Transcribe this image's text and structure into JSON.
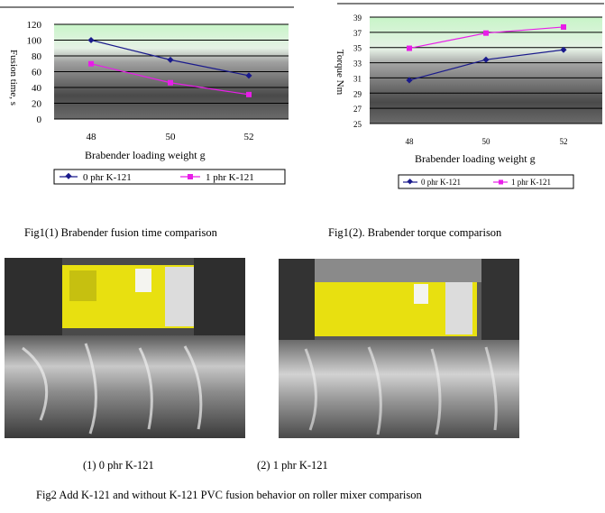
{
  "chart_data": [
    {
      "type": "line",
      "categories": [
        "48",
        "50",
        "52"
      ],
      "series": [
        {
          "name": "0 phr K-121",
          "values": [
            100,
            75,
            55
          ],
          "color": "#1a1a8c"
        },
        {
          "name": "1 phr K-121",
          "values": [
            70,
            46,
            31
          ],
          "color": "#e81ee8"
        }
      ],
      "ylabel": "Fusion time, s",
      "xlabel": "Brabender loading weight g",
      "ylim": [
        0,
        120
      ],
      "yticks": [
        "0",
        "20",
        "40",
        "60",
        "80",
        "100",
        "120"
      ],
      "grid": true,
      "legend_position": "bottom"
    },
    {
      "type": "line",
      "categories": [
        "48",
        "50",
        "52"
      ],
      "series": [
        {
          "name": "0 phr K-121",
          "values": [
            30.7,
            33.4,
            34.7
          ],
          "color": "#1a1a8c"
        },
        {
          "name": "1 phr K-121",
          "values": [
            34.9,
            36.9,
            37.7
          ],
          "color": "#e81ee8"
        }
      ],
      "ylabel": "Torque Nm",
      "xlabel": "Brabender loading weight g",
      "ylim": [
        25,
        39
      ],
      "yticks": [
        "25",
        "27",
        "29",
        "31",
        "33",
        "35",
        "37",
        "39"
      ],
      "grid": true,
      "legend_position": "bottom"
    }
  ],
  "captions": {
    "fig1_1": "Fig1(1) Brabender fusion time comparison",
    "fig1_2": "Fig1(2).  Brabender torque comparison",
    "photo1": "(1) 0 phr K-121",
    "photo2": "(2) 1 phr K-121",
    "fig2": "Fig2 Add K-121 and without K-121 PVC fusion behavior on roller mixer comparison"
  },
  "legend": {
    "series1": "0  phr  K-121",
    "series2": "1  phr  K-121"
  }
}
